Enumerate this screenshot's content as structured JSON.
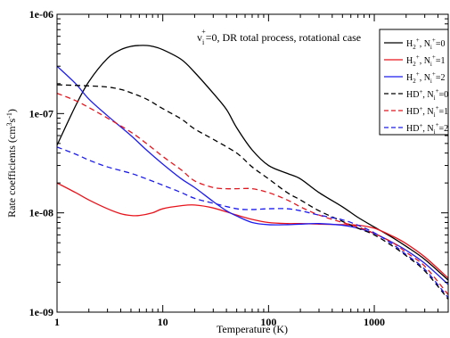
{
  "chart_data": {
    "type": "line",
    "x_scale": "log",
    "y_scale": "log",
    "xlim": [
      1,
      5000
    ],
    "ylim": [
      1e-09,
      1e-06
    ],
    "x_ticks": [
      1,
      10,
      100,
      1000
    ],
    "x_tick_labels": [
      "1",
      "10",
      "100",
      "1000"
    ],
    "y_ticks": [
      1e-09,
      1e-08,
      1e-07,
      1e-06
    ],
    "y_tick_labels": [
      "1e-09",
      "1e-08",
      "1e-07",
      "1e-06"
    ],
    "xlabel": "Temperature (K)",
    "ylabel": "Rate coefficients (cm³s⁻¹)",
    "ylabel_parts": {
      "base": "Rate coefficients (cm",
      "sup1": "3",
      "mid": "s",
      "sup2": "-1",
      "end": ")"
    },
    "annotation": {
      "pre": "v",
      "sub": "i",
      "sup": "+",
      "post": "=0, DR total process, rotational case"
    },
    "grid": false,
    "legend_position": "top-right",
    "series": [
      {
        "name": "H2+, Ni+=0",
        "legend": {
          "mol": "H",
          "molsub": "2",
          "molsup": "+",
          "sep": ", N",
          "nsub": "i",
          "nsup": "+",
          "val": "=0"
        },
        "color": "#000000",
        "dash": "solid",
        "points": [
          [
            1,
            4.8e-08
          ],
          [
            1.5,
            1.2e-07
          ],
          [
            2,
            2.1e-07
          ],
          [
            3,
            3.6e-07
          ],
          [
            4,
            4.4e-07
          ],
          [
            5,
            4.75e-07
          ],
          [
            6,
            4.85e-07
          ],
          [
            7,
            4.85e-07
          ],
          [
            8,
            4.75e-07
          ],
          [
            10,
            4.4e-07
          ],
          [
            15,
            3.5e-07
          ],
          [
            20,
            2.6e-07
          ],
          [
            30,
            1.6e-07
          ],
          [
            40,
            1.1e-07
          ],
          [
            50,
            7.2e-08
          ],
          [
            70,
            4.3e-08
          ],
          [
            100,
            3e-08
          ],
          [
            150,
            2.5e-08
          ],
          [
            200,
            2.2e-08
          ],
          [
            300,
            1.6e-08
          ],
          [
            500,
            1.15e-08
          ],
          [
            700,
            9e-09
          ],
          [
            1000,
            7.2e-09
          ],
          [
            1500,
            5.6e-09
          ],
          [
            2000,
            4.6e-09
          ],
          [
            3000,
            3.4e-09
          ],
          [
            5000,
            2.1e-09
          ]
        ]
      },
      {
        "name": "H2+, Ni+=1",
        "legend": {
          "mol": "H",
          "molsub": "2",
          "molsup": "+",
          "sep": ", N",
          "nsub": "i",
          "nsup": "+",
          "val": "=1"
        },
        "color": "#e8141c",
        "dash": "solid",
        "points": [
          [
            1,
            2e-08
          ],
          [
            1.5,
            1.6e-08
          ],
          [
            2,
            1.35e-08
          ],
          [
            3,
            1.1e-08
          ],
          [
            4,
            9.8e-09
          ],
          [
            5,
            9.4e-09
          ],
          [
            6,
            9.4e-09
          ],
          [
            8,
            1e-08
          ],
          [
            10,
            1.1e-08
          ],
          [
            15,
            1.18e-08
          ],
          [
            20,
            1.2e-08
          ],
          [
            30,
            1.12e-08
          ],
          [
            50,
            9.5e-09
          ],
          [
            70,
            8.6e-09
          ],
          [
            100,
            8e-09
          ],
          [
            150,
            7.8e-09
          ],
          [
            200,
            7.8e-09
          ],
          [
            300,
            7.7e-09
          ],
          [
            500,
            7.6e-09
          ],
          [
            700,
            7.5e-09
          ],
          [
            1000,
            7e-09
          ],
          [
            1500,
            5.8e-09
          ],
          [
            2000,
            4.9e-09
          ],
          [
            3000,
            3.6e-09
          ],
          [
            5000,
            2.2e-09
          ]
        ]
      },
      {
        "name": "H2+, Ni+=2",
        "legend": {
          "mol": "H",
          "molsub": "2",
          "molsup": "+",
          "sep": ", N",
          "nsub": "i",
          "nsup": "+",
          "val": "=2"
        },
        "color": "#1c1cf0",
        "dash": "solid",
        "points": [
          [
            1,
            3e-07
          ],
          [
            1.5,
            2e-07
          ],
          [
            2,
            1.4e-07
          ],
          [
            3,
            9.5e-08
          ],
          [
            5,
            6e-08
          ],
          [
            7,
            4.3e-08
          ],
          [
            10,
            3.1e-08
          ],
          [
            15,
            2.2e-08
          ],
          [
            20,
            1.8e-08
          ],
          [
            30,
            1.3e-08
          ],
          [
            40,
            1.05e-08
          ],
          [
            50,
            9.3e-09
          ],
          [
            70,
            8e-09
          ],
          [
            100,
            7.6e-09
          ],
          [
            150,
            7.6e-09
          ],
          [
            200,
            7.7e-09
          ],
          [
            300,
            7.8e-09
          ],
          [
            500,
            7.5e-09
          ],
          [
            700,
            7e-09
          ],
          [
            1000,
            6.2e-09
          ],
          [
            1500,
            5e-09
          ],
          [
            2000,
            4.2e-09
          ],
          [
            3000,
            3.1e-09
          ],
          [
            5000,
            1.9e-09
          ]
        ]
      },
      {
        "name": "HD+, Ni+=0",
        "legend": {
          "mol": "HD",
          "molsub": "",
          "molsup": "+",
          "sep": ", N",
          "nsub": "i",
          "nsup": "+",
          "val": "=0"
        },
        "color": "#000000",
        "dash": "6,4",
        "points": [
          [
            1,
            1.95e-07
          ],
          [
            2,
            1.9e-07
          ],
          [
            3,
            1.85e-07
          ],
          [
            4,
            1.75e-07
          ],
          [
            5,
            1.62e-07
          ],
          [
            7,
            1.4e-07
          ],
          [
            10,
            1.12e-07
          ],
          [
            15,
            8.8e-08
          ],
          [
            20,
            7e-08
          ],
          [
            30,
            5.5e-08
          ],
          [
            50,
            4e-08
          ],
          [
            70,
            2.9e-08
          ],
          [
            100,
            2.2e-08
          ],
          [
            150,
            1.6e-08
          ],
          [
            200,
            1.35e-08
          ],
          [
            300,
            1.05e-08
          ],
          [
            500,
            8.2e-09
          ],
          [
            700,
            7e-09
          ],
          [
            1000,
            6e-09
          ],
          [
            1500,
            4.6e-09
          ],
          [
            2000,
            3.7e-09
          ],
          [
            3000,
            2.6e-09
          ],
          [
            5000,
            1.35e-09
          ]
        ]
      },
      {
        "name": "HD+, Ni+=1",
        "legend": {
          "mol": "HD",
          "molsub": "",
          "molsup": "+",
          "sep": ", N",
          "nsub": "i",
          "nsup": "+",
          "val": "=1"
        },
        "color": "#e8141c",
        "dash": "6,4",
        "points": [
          [
            1,
            1.6e-07
          ],
          [
            1.5,
            1.35e-07
          ],
          [
            2,
            1.15e-07
          ],
          [
            3,
            9e-08
          ],
          [
            5,
            6.5e-08
          ],
          [
            7,
            5e-08
          ],
          [
            10,
            3.7e-08
          ],
          [
            15,
            2.7e-08
          ],
          [
            20,
            2.1e-08
          ],
          [
            30,
            1.8e-08
          ],
          [
            40,
            1.75e-08
          ],
          [
            50,
            1.75e-08
          ],
          [
            70,
            1.75e-08
          ],
          [
            100,
            1.6e-08
          ],
          [
            150,
            1.35e-08
          ],
          [
            200,
            1.15e-08
          ],
          [
            300,
            9.5e-09
          ],
          [
            500,
            8e-09
          ],
          [
            700,
            7.2e-09
          ],
          [
            1000,
            6.2e-09
          ],
          [
            1500,
            5e-09
          ],
          [
            2000,
            4e-09
          ],
          [
            3000,
            2.9e-09
          ],
          [
            5000,
            1.5e-09
          ]
        ]
      },
      {
        "name": "HD+, Ni+=2",
        "legend": {
          "mol": "HD",
          "molsub": "",
          "molsup": "+",
          "sep": ", N",
          "nsub": "i",
          "nsup": "+",
          "val": "=2"
        },
        "color": "#1c1cf0",
        "dash": "6,4",
        "points": [
          [
            1,
            4.6e-08
          ],
          [
            1.5,
            3.9e-08
          ],
          [
            2,
            3.4e-08
          ],
          [
            3,
            2.9e-08
          ],
          [
            5,
            2.5e-08
          ],
          [
            7,
            2.2e-08
          ],
          [
            10,
            1.9e-08
          ],
          [
            15,
            1.6e-08
          ],
          [
            20,
            1.4e-08
          ],
          [
            30,
            1.25e-08
          ],
          [
            50,
            1.1e-08
          ],
          [
            70,
            1.08e-08
          ],
          [
            100,
            1.1e-08
          ],
          [
            150,
            1.1e-08
          ],
          [
            200,
            1.05e-08
          ],
          [
            300,
            9.5e-09
          ],
          [
            500,
            8.5e-09
          ],
          [
            700,
            7.5e-09
          ],
          [
            1000,
            6.3e-09
          ],
          [
            1500,
            4.8e-09
          ],
          [
            2000,
            3.8e-09
          ],
          [
            3000,
            2.7e-09
          ],
          [
            5000,
            1.4e-09
          ]
        ]
      }
    ]
  }
}
